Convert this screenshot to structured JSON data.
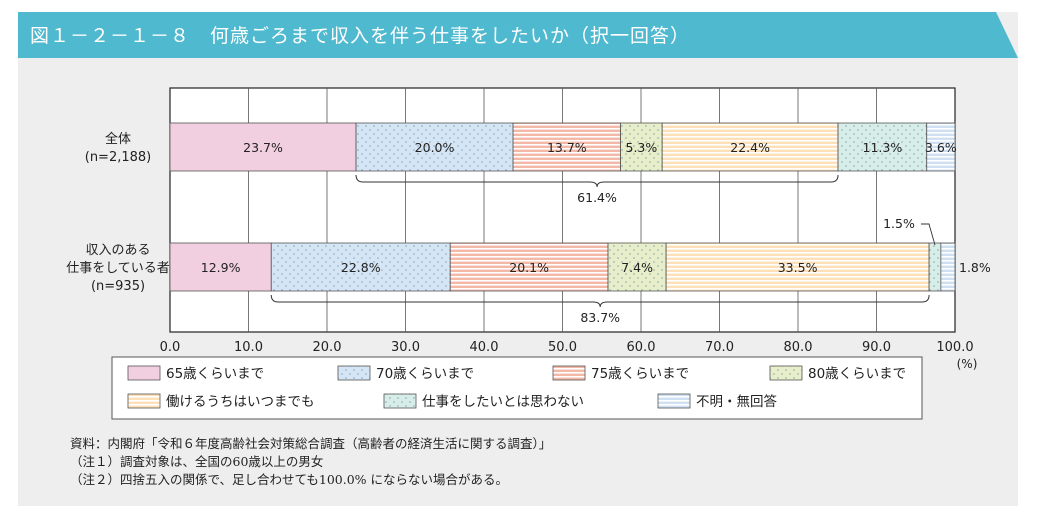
{
  "header": {
    "title": "図１－２－１－８　何歳ごろまで収入を伴う仕事をしたいか（択一回答）",
    "bg_color": "#4fb9cf"
  },
  "chart_data": {
    "type": "bar",
    "orientation": "horizontal",
    "stacked": true,
    "categories": [
      [
        "全体",
        "(n=2,188)"
      ],
      [
        "収入のある",
        "仕事をしている者",
        "(n=935)"
      ]
    ],
    "series": [
      {
        "name": "65歳くらいまで",
        "values": [
          23.7,
          12.9
        ],
        "labels": [
          "23.7%",
          "12.9%"
        ],
        "color": "#f2cfe0",
        "pattern": "none"
      },
      {
        "name": "70歳くらいまで",
        "values": [
          20.0,
          22.8
        ],
        "labels": [
          "20.0%",
          "22.8%"
        ],
        "color": "#d4e5f5",
        "pattern": "dots"
      },
      {
        "name": "75歳くらいまで",
        "values": [
          13.7,
          20.1
        ],
        "labels": [
          "13.7%",
          "20.1%"
        ],
        "color": "#f4b8a6",
        "pattern": "hstripes"
      },
      {
        "name": "80歳くらいまで",
        "values": [
          5.3,
          7.4
        ],
        "labels": [
          "5.3%",
          "7.4%"
        ],
        "color": "#e6efc9",
        "pattern": "dots"
      },
      {
        "name": "働けるうちはいつまでも",
        "values": [
          22.4,
          33.5
        ],
        "labels": [
          "22.4%",
          "33.5%"
        ],
        "color": "#fde0b8",
        "pattern": "hstripes"
      },
      {
        "name": "仕事をしたいとは思わない",
        "values": [
          11.3,
          1.5
        ],
        "labels": [
          "11.3%",
          "1.5%"
        ],
        "color": "#d7eee8",
        "pattern": "dots"
      },
      {
        "name": "不明・無回答",
        "values": [
          3.6,
          1.8
        ],
        "labels": [
          "3.6%",
          "1.8%"
        ],
        "color": "#cfe0f3",
        "pattern": "hstripes"
      }
    ],
    "brackets": [
      {
        "category_index": 0,
        "from_series": 1,
        "to_series": 4,
        "label": "61.4%"
      },
      {
        "category_index": 1,
        "from_series": 1,
        "to_series": 4,
        "label": "83.7%"
      }
    ],
    "xlim": [
      0,
      100
    ],
    "xticks": [
      "0.0",
      "10.0",
      "20.0",
      "30.0",
      "40.0",
      "50.0",
      "60.0",
      "70.0",
      "80.0",
      "90.0",
      "100.0"
    ],
    "xunit": "(%)",
    "grid": true,
    "legend_position": "bottom"
  },
  "notes": {
    "source": "資料：内閣府「令和６年度高齢社会対策総合調査（高齢者の経済生活に関する調査）」",
    "note1": "（注１）調査対象は、全国の60歳以上の男女",
    "note2": "（注２）四捨五入の関係で、足し合わせても100.0% にならない場合がある。"
  }
}
